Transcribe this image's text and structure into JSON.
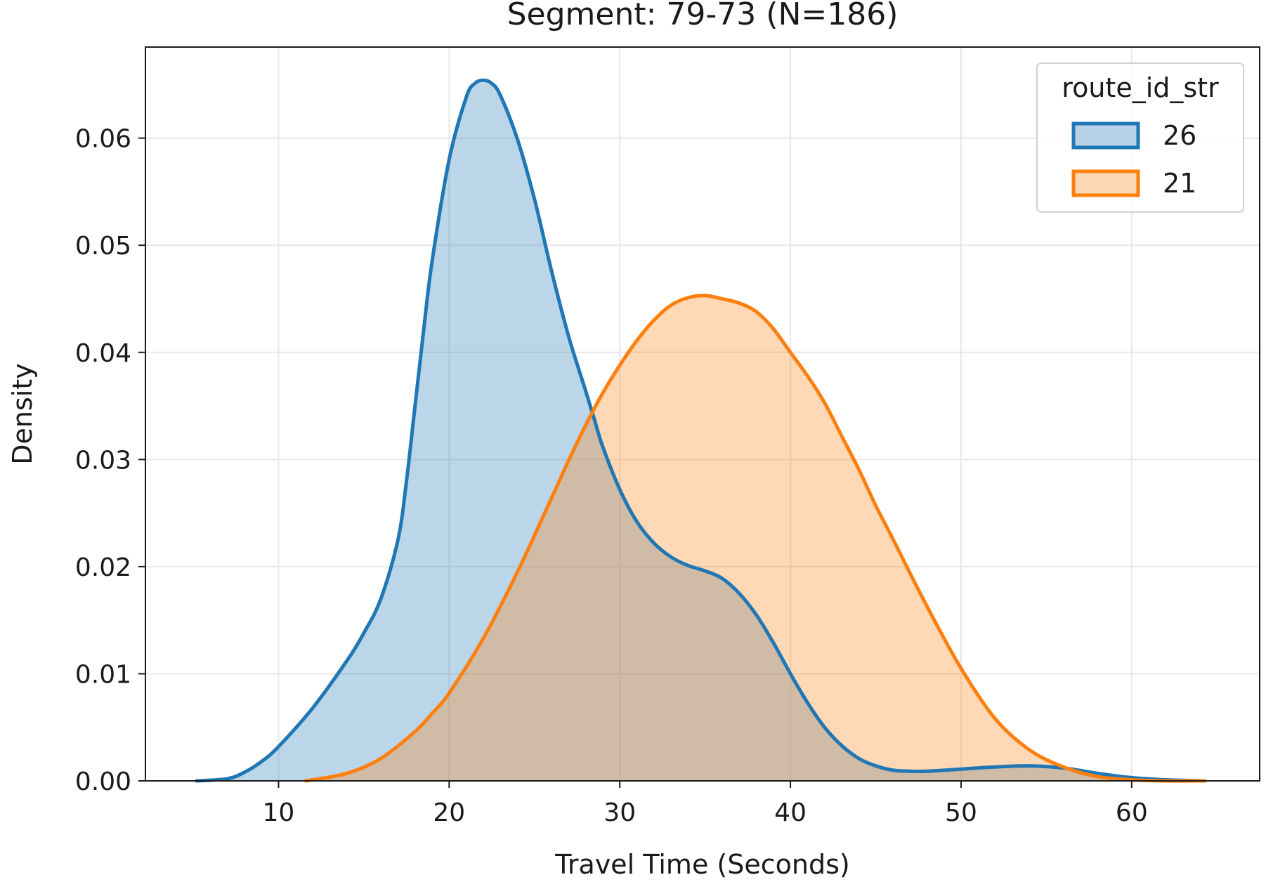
{
  "chart_data": {
    "type": "area",
    "title": "Segment: 79-73 (N=186)",
    "xlabel": "Travel Time (Seconds)",
    "ylabel": "Density",
    "xlim": [
      2.2,
      67.5
    ],
    "ylim": [
      0,
      0.0685
    ],
    "xticks": [
      10,
      20,
      30,
      40,
      50,
      60
    ],
    "yticks": [
      0.0,
      0.01,
      0.02,
      0.03,
      0.04,
      0.05,
      0.06
    ],
    "xtick_labels": [
      "10",
      "20",
      "30",
      "40",
      "50",
      "60"
    ],
    "ytick_labels": [
      "0.00",
      "0.01",
      "0.02",
      "0.03",
      "0.04",
      "0.05",
      "0.06"
    ],
    "grid": true,
    "legend": {
      "title": "route_id_str",
      "position": "top-right"
    },
    "series": [
      {
        "name": "26",
        "color": "#1f77b4",
        "fill": "#b7d1e6",
        "x": [
          5.2,
          7,
          8,
          9,
          10,
          12,
          14,
          15,
          16,
          17,
          17.5,
          18,
          18.5,
          19,
          20,
          21,
          21.5,
          22,
          22.5,
          23,
          24,
          25,
          26,
          27,
          28,
          28.5,
          29,
          30,
          31,
          32,
          33,
          34,
          35,
          36,
          37,
          38,
          39,
          40,
          41,
          42,
          43,
          44,
          45,
          46,
          47,
          48,
          50,
          52,
          54,
          56,
          58,
          60,
          62,
          64.3
        ],
        "y": [
          0.0,
          0.0002,
          0.0008,
          0.0018,
          0.0032,
          0.0068,
          0.0112,
          0.0138,
          0.017,
          0.0225,
          0.028,
          0.035,
          0.042,
          0.0485,
          0.058,
          0.0638,
          0.0651,
          0.0654,
          0.0651,
          0.064,
          0.0599,
          0.0543,
          0.0476,
          0.0415,
          0.0364,
          0.0338,
          0.0312,
          0.0272,
          0.0242,
          0.0222,
          0.0209,
          0.0201,
          0.0196,
          0.0189,
          0.0175,
          0.0155,
          0.0129,
          0.01,
          0.0073,
          0.005,
          0.0033,
          0.0021,
          0.0014,
          0.001,
          0.0009,
          0.0009,
          0.0011,
          0.0013,
          0.0014,
          0.0012,
          0.0007,
          0.0003,
          0.0001,
          0.0
        ]
      },
      {
        "name": "21",
        "color": "#ff7f0e",
        "fill": "#fed7b5",
        "x": [
          11.6,
          14,
          16,
          18,
          19,
          20,
          22,
          24,
          26,
          27,
          28,
          29,
          30,
          31,
          32,
          33,
          34,
          35,
          36,
          37,
          38,
          39,
          40,
          41,
          42,
          43,
          44,
          45,
          46,
          48,
          50,
          52,
          54,
          56,
          58,
          60,
          62,
          64.3
        ],
        "y": [
          0.0,
          0.0007,
          0.0021,
          0.0046,
          0.0063,
          0.0082,
          0.0133,
          0.0195,
          0.0264,
          0.0299,
          0.0332,
          0.0362,
          0.0388,
          0.0411,
          0.043,
          0.0444,
          0.0451,
          0.0453,
          0.045,
          0.0446,
          0.0438,
          0.0422,
          0.04,
          0.0378,
          0.0353,
          0.0322,
          0.0291,
          0.0257,
          0.0226,
          0.0163,
          0.0105,
          0.0058,
          0.0029,
          0.0013,
          0.0004,
          0.0001,
          0.0,
          0.0
        ]
      }
    ]
  }
}
